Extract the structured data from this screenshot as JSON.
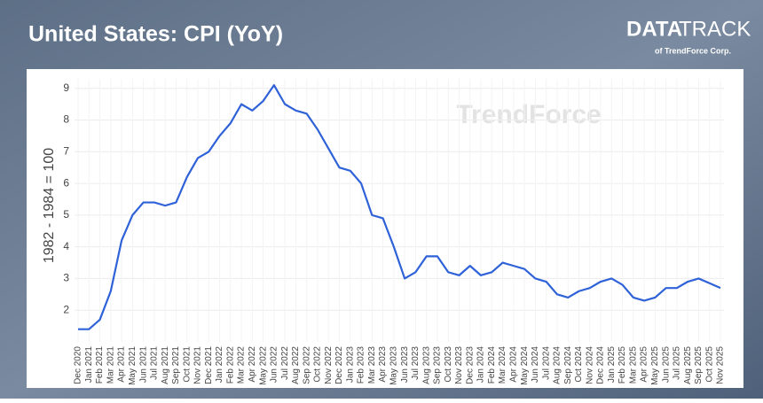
{
  "chart_data": {
    "type": "line",
    "title": "United States: CPI (YoY)",
    "y_label": "1982 - 1984 = 100",
    "branding": {
      "logo_bold": "DATA",
      "logo_light": "TRACK",
      "sub": "of TrendForce Corp.",
      "watermark": "TrendForce"
    },
    "color": "#2f62d8",
    "grid": true,
    "ylim": [
      1,
      9.3
    ],
    "yticks": [
      2,
      3,
      4,
      5,
      6,
      7,
      8,
      9
    ],
    "categories": [
      "Dec 2020",
      "Jan 2021",
      "Feb 2021",
      "Mar 2021",
      "Apr 2021",
      "May 2021",
      "Jun 2021",
      "Jul 2021",
      "Aug 2021",
      "Sep 2021",
      "Oct 2021",
      "Nov 2021",
      "Dec 2021",
      "Jan 2022",
      "Feb 2022",
      "Mar 2022",
      "Apr 2022",
      "May 2022",
      "Jun 2022",
      "Jul 2022",
      "Aug 2022",
      "Sep 2022",
      "Oct 2022",
      "Nov 2022",
      "Dec 2022",
      "Jan 2023",
      "Feb 2023",
      "Mar 2023",
      "Apr 2023",
      "May 2023",
      "Jun 2023",
      "Jul 2023",
      "Aug 2023",
      "Sep 2023",
      "Oct 2023",
      "Nov 2023",
      "Dec 2023",
      "Jan 2024",
      "Feb 2024",
      "Mar 2024",
      "Apr 2024",
      "May 2024",
      "Jun 2024",
      "Jul 2024",
      "Aug 2024",
      "Sep 2024",
      "Oct 2024",
      "Nov 2024",
      "Dec 2024",
      "Jan 2025",
      "Feb 2025",
      "Mar 2025",
      "Apr 2025",
      "May 2025",
      "Jun 2025",
      "Jul 2025",
      "Aug 2025",
      "Sep 2025",
      "Oct 2025",
      "Nov 2025"
    ],
    "values": [
      1.4,
      1.4,
      1.7,
      2.6,
      4.2,
      5.0,
      5.4,
      5.4,
      5.3,
      5.4,
      6.2,
      6.8,
      7.0,
      7.5,
      7.9,
      8.5,
      8.3,
      8.6,
      9.1,
      8.5,
      8.3,
      8.2,
      7.7,
      7.1,
      6.5,
      6.4,
      6.0,
      5.0,
      4.9,
      4.0,
      3.0,
      3.2,
      3.7,
      3.7,
      3.2,
      3.1,
      3.4,
      3.1,
      3.2,
      3.5,
      3.4,
      3.3,
      3.0,
      2.9,
      2.5,
      2.4,
      2.6,
      2.7,
      2.9,
      3.0,
      2.8,
      2.4,
      2.3,
      2.4,
      2.7,
      2.7,
      2.9,
      3.0,
      2.85,
      2.7
    ]
  }
}
